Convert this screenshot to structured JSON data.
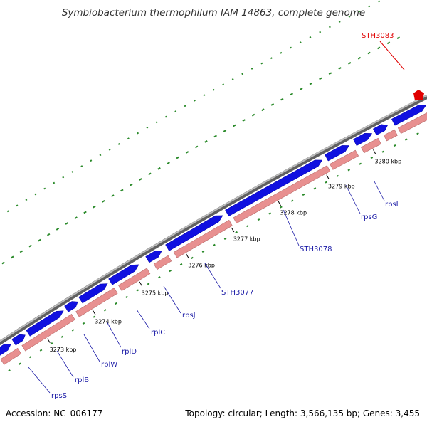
{
  "title": "Symbiobacterium thermophilum IAM 14863, complete genome",
  "footer": {
    "accession": "Accession: NC_006177",
    "summary": "Topology: circular; Length: 3,566,135 bp; Genes: 3,455"
  },
  "colors": {
    "forward_gene": "#1010e0",
    "reverse_track": "#e89090",
    "backbone": "#8a8a8a",
    "gc_dots": "#2a8a2a",
    "gene_label": "#1a1aa6",
    "highlight": "#e00000"
  },
  "ticks": [
    "3273 kbp",
    "3274 kbp",
    "3275 kbp",
    "3276 kbp",
    "3277 kbp",
    "3278 kbp",
    "3279 kbp",
    "3280 kbp"
  ],
  "genes": [
    "rpsS",
    "rplB",
    "rplW",
    "rplD",
    "rplC",
    "rpsJ",
    "STH3077",
    "STH3078",
    "rpsG",
    "rpsL"
  ],
  "highlight_gene": "STH3083"
}
